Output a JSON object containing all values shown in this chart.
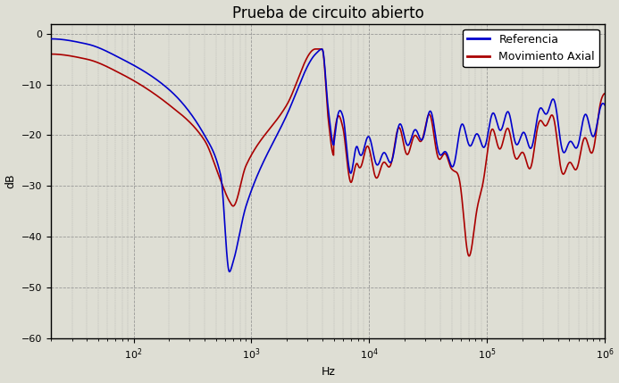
{
  "title": "Prueba de circuito abierto",
  "xlabel": "Hz",
  "ylabel": "dB",
  "xlim": [
    20,
    1000000
  ],
  "ylim": [
    -60,
    2
  ],
  "yticks": [
    0,
    -10,
    -20,
    -30,
    -40,
    -50,
    -60
  ],
  "legend_labels": [
    "Referencia",
    "Movimiento Axial"
  ],
  "line_colors": [
    "#0000cc",
    "#aa0000"
  ],
  "bg_color": "#deded4",
  "grid_color": "#888888",
  "title_fontsize": 12,
  "axis_fontsize": 9,
  "tick_fontsize": 8,
  "legend_fontsize": 9,
  "linewidth": 1.2,
  "ref_keypoints_f": [
    20,
    40,
    80,
    200,
    400,
    550,
    650,
    700,
    900,
    2000,
    3500,
    4000,
    4500,
    5000,
    6000,
    7000,
    8000,
    10000,
    15000,
    20000,
    30000,
    50000,
    70000,
    100000,
    150000,
    200000,
    300000,
    500000,
    700000,
    1000000
  ],
  "ref_keypoints_y": [
    -1,
    -2,
    -5,
    -11,
    -20,
    -28,
    -47,
    -45,
    -34,
    -16,
    -4,
    -3,
    -15,
    -22,
    -20,
    -31,
    -22,
    -24,
    -20,
    -22,
    -20,
    -22,
    -20,
    -22,
    -15,
    -22,
    -15,
    -22,
    -18,
    -14
  ],
  "axial_keypoints_f": [
    20,
    40,
    80,
    200,
    400,
    550,
    650,
    700,
    900,
    2000,
    3500,
    4000,
    4500,
    5000,
    6000,
    7000,
    8000,
    10000,
    15000,
    20000,
    30000,
    50000,
    70000,
    100000,
    150000,
    200000,
    300000,
    500000,
    700000,
    1000000
  ],
  "axial_keypoints_y": [
    -4,
    -5,
    -8,
    -14,
    -21,
    -29,
    -33,
    -34,
    -26,
    -14,
    -3,
    -3,
    -17,
    -24,
    -22,
    -32,
    -24,
    -25,
    -22,
    -24,
    -20,
    -23,
    -42,
    -26,
    -18,
    -26,
    -18,
    -26,
    -22,
    -12
  ]
}
